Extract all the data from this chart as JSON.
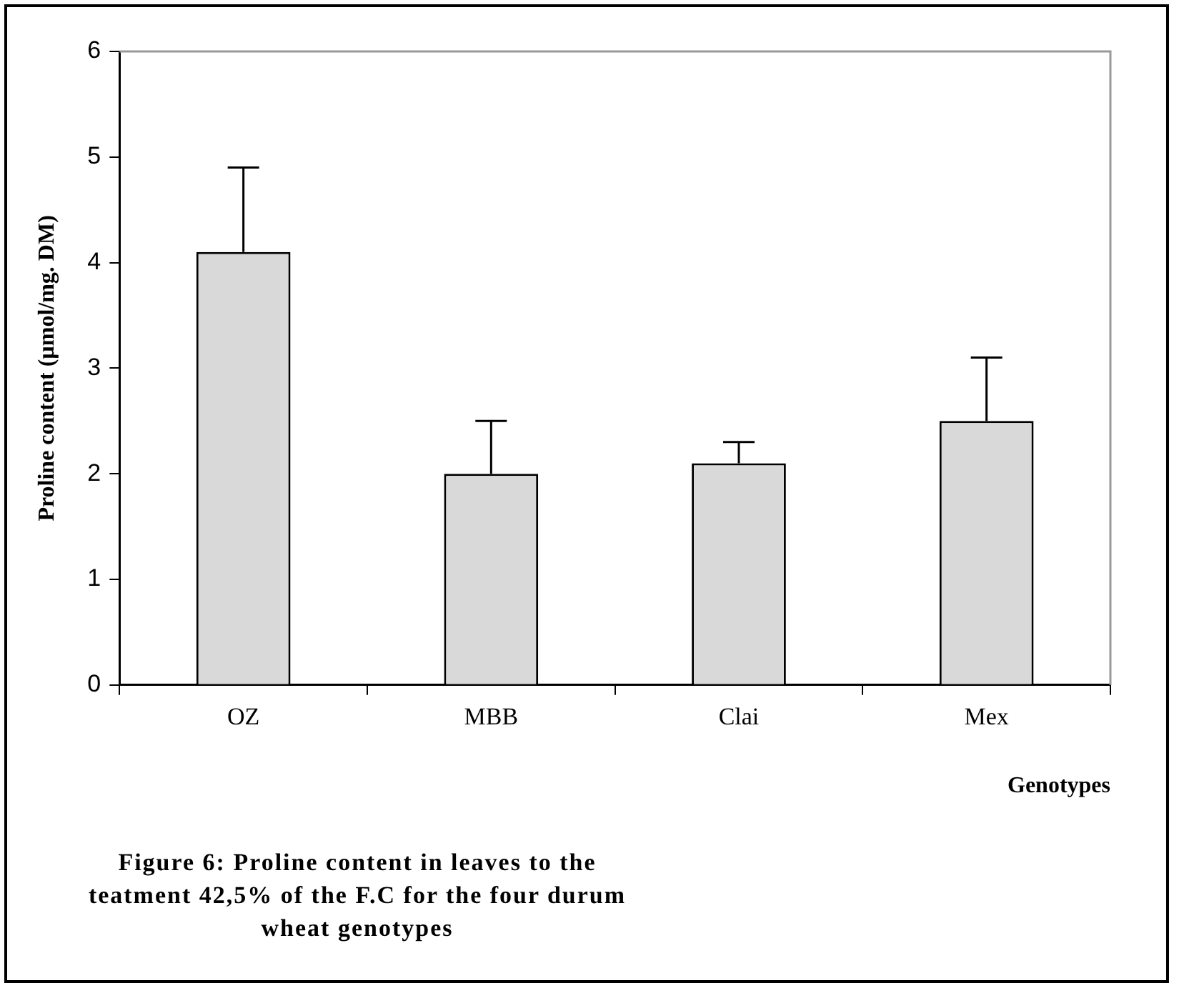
{
  "chart_data": {
    "type": "bar",
    "ylabel": "Proline content (µmol/mg. DM)",
    "xlabel": "Genotypes",
    "categories": [
      "OZ",
      "MBB",
      "Clai",
      "Mex"
    ],
    "values": [
      4.1,
      2.0,
      2.1,
      2.5
    ],
    "errors": [
      [
        4.1,
        4.9
      ],
      [
        2.0,
        2.5
      ],
      [
        2.1,
        2.3
      ],
      [
        2.5,
        3.1
      ]
    ],
    "color": "#d9d9d9",
    "ylim": [
      0,
      6
    ],
    "yticks": [
      0,
      1,
      2,
      3,
      4,
      5,
      6
    ],
    "grid": false,
    "legend": false,
    "annotations": [
      "Figure 6: Proline content in leaves to the teatment 42,5% of the F.C for the four durum wheat genotypes"
    ]
  }
}
